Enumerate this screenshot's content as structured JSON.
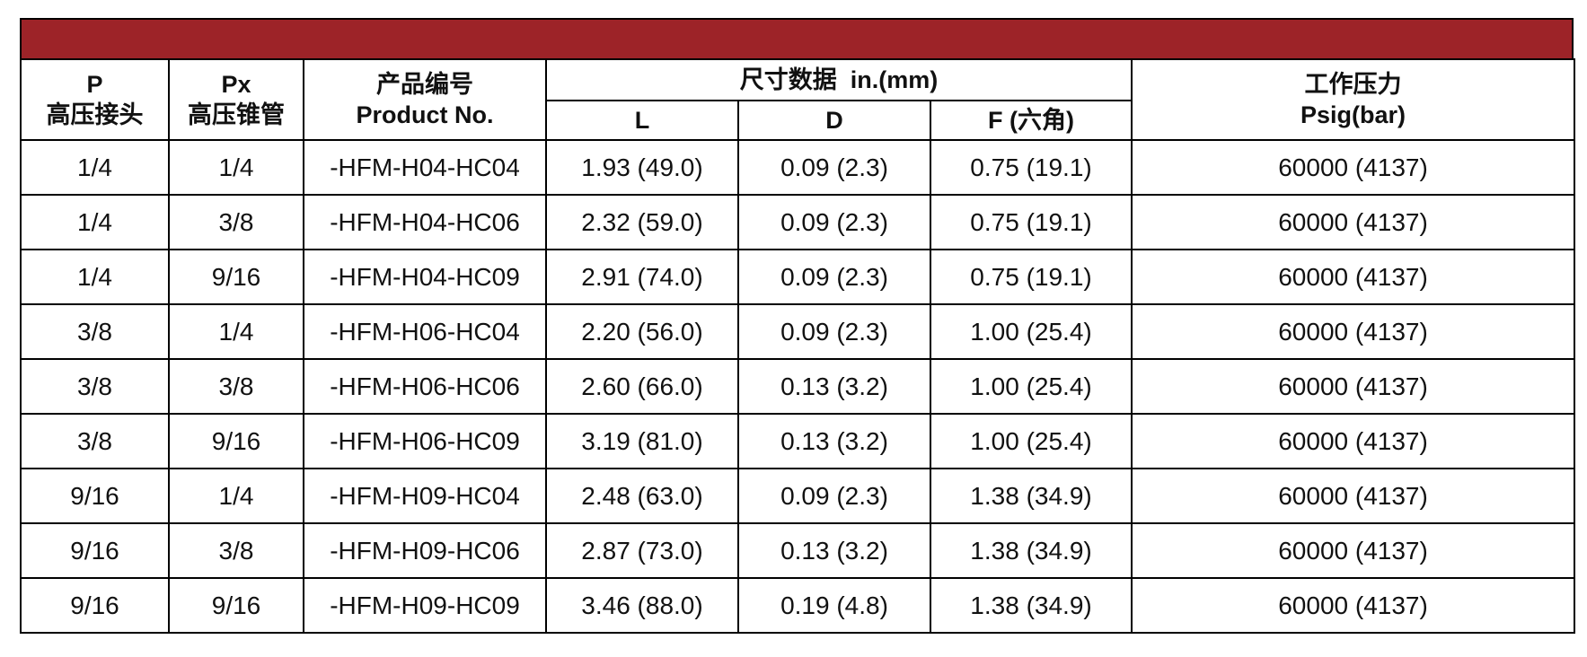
{
  "table": {
    "title_bar_color": "#9d2328",
    "headers": {
      "p": {
        "line1": "P",
        "line2": "高压接头"
      },
      "px": {
        "line1": "Px",
        "line2": "高压锥管"
      },
      "product": {
        "line1": "产品编号",
        "line2": "Product No."
      },
      "dims_group": "尺寸数据  in.(mm)",
      "l": "L",
      "d": "D",
      "f": "F (六角)",
      "pressure": {
        "line1": "工作压力",
        "line2": "Psig(bar)"
      }
    },
    "rows": [
      [
        "1/4",
        "1/4",
        "-HFM-H04-HC04",
        "1.93 (49.0)",
        "0.09 (2.3)",
        "0.75 (19.1)",
        "60000 (4137)"
      ],
      [
        "1/4",
        "3/8",
        "-HFM-H04-HC06",
        "2.32 (59.0)",
        "0.09 (2.3)",
        "0.75 (19.1)",
        "60000 (4137)"
      ],
      [
        "1/4",
        "9/16",
        "-HFM-H04-HC09",
        "2.91 (74.0)",
        "0.09 (2.3)",
        "0.75 (19.1)",
        "60000 (4137)"
      ],
      [
        "3/8",
        "1/4",
        "-HFM-H06-HC04",
        "2.20 (56.0)",
        "0.09 (2.3)",
        "1.00 (25.4)",
        "60000 (4137)"
      ],
      [
        "3/8",
        "3/8",
        "-HFM-H06-HC06",
        "2.60 (66.0)",
        "0.13 (3.2)",
        "1.00 (25.4)",
        "60000 (4137)"
      ],
      [
        "3/8",
        "9/16",
        "-HFM-H06-HC09",
        "3.19 (81.0)",
        "0.13 (3.2)",
        "1.00 (25.4)",
        "60000 (4137)"
      ],
      [
        "9/16",
        "1/4",
        "-HFM-H09-HC04",
        "2.48 (63.0)",
        "0.09 (2.3)",
        "1.38 (34.9)",
        "60000 (4137)"
      ],
      [
        "9/16",
        "3/8",
        "-HFM-H09-HC06",
        "2.87 (73.0)",
        "0.13 (3.2)",
        "1.38 (34.9)",
        "60000 (4137)"
      ],
      [
        "9/16",
        "9/16",
        "-HFM-H09-HC09",
        "3.46 (88.0)",
        "0.19 (4.8)",
        "1.38 (34.9)",
        "60000 (4137)"
      ]
    ]
  }
}
